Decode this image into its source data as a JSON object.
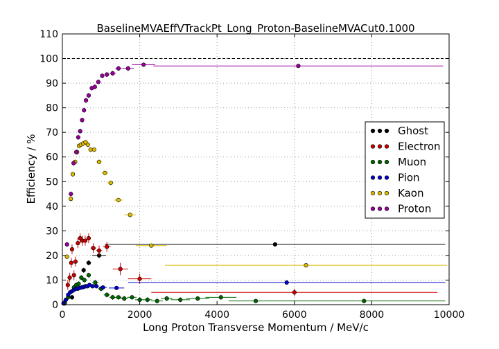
{
  "chart_data": {
    "type": "scatter",
    "title": "BaselineMVAEffVTrackPt_Long_Proton-BaselineMVACut0.1000",
    "xlabel": "Long Proton Transverse Momentum / MeV/c",
    "ylabel": "Efficiency / %",
    "xlim": [
      0,
      10000
    ],
    "ylim": [
      0,
      110
    ],
    "xticks": [
      "0",
      "2000",
      "4000",
      "6000",
      "8000",
      "10000"
    ],
    "yticks": [
      "0",
      "10",
      "20",
      "30",
      "40",
      "50",
      "60",
      "70",
      "80",
      "90",
      "100",
      "110"
    ],
    "grid": true,
    "reference_line": 100,
    "legend_position": "right",
    "series": [
      {
        "name": "Ghost",
        "color": "#000000",
        "points": [
          {
            "x": 250,
            "y": 3,
            "xerr": 50,
            "yerr": 1
          },
          {
            "x": 550,
            "y": 14,
            "xerr": 50,
            "yerr": 1
          },
          {
            "x": 680,
            "y": 17,
            "xerr": 60,
            "yerr": 1
          },
          {
            "x": 950,
            "y": 20,
            "xerr": 180,
            "yerr": 1
          },
          {
            "x": 5500,
            "y": 24.5,
            "xerr": 4400,
            "yerr": 0.8
          }
        ]
      },
      {
        "name": "Electron",
        "color": "#cc0000",
        "points": [
          {
            "x": 60,
            "y": 1,
            "xerr": 40,
            "yerr": 1
          },
          {
            "x": 140,
            "y": 8,
            "xerr": 40,
            "yerr": 2
          },
          {
            "x": 190,
            "y": 11,
            "xerr": 30,
            "yerr": 2
          },
          {
            "x": 230,
            "y": 17,
            "xerr": 30,
            "yerr": 2
          },
          {
            "x": 250,
            "y": 22.5,
            "xerr": 30,
            "yerr": 2
          },
          {
            "x": 300,
            "y": 12,
            "xerr": 30,
            "yerr": 2
          },
          {
            "x": 340,
            "y": 17.5,
            "xerr": 30,
            "yerr": 2
          },
          {
            "x": 400,
            "y": 25,
            "xerr": 40,
            "yerr": 2
          },
          {
            "x": 460,
            "y": 27,
            "xerr": 40,
            "yerr": 2
          },
          {
            "x": 520,
            "y": 26,
            "xerr": 40,
            "yerr": 2
          },
          {
            "x": 590,
            "y": 26,
            "xerr": 40,
            "yerr": 2
          },
          {
            "x": 680,
            "y": 27,
            "xerr": 50,
            "yerr": 2
          },
          {
            "x": 800,
            "y": 23,
            "xerr": 70,
            "yerr": 2
          },
          {
            "x": 950,
            "y": 22,
            "xerr": 80,
            "yerr": 2
          },
          {
            "x": 1150,
            "y": 23.5,
            "xerr": 100,
            "yerr": 2
          },
          {
            "x": 1500,
            "y": 14.5,
            "xerr": 200,
            "yerr": 2.5
          },
          {
            "x": 2000,
            "y": 10.5,
            "xerr": 300,
            "yerr": 2
          },
          {
            "x": 6000,
            "y": 5,
            "xerr": 3700,
            "yerr": 1.5
          }
        ]
      },
      {
        "name": "Muon",
        "color": "#006600",
        "points": [
          {
            "x": 60,
            "y": 0.5,
            "xerr": 40,
            "yerr": 0.5
          },
          {
            "x": 150,
            "y": 3,
            "xerr": 30,
            "yerr": 1
          },
          {
            "x": 300,
            "y": 7,
            "xerr": 30,
            "yerr": 1
          },
          {
            "x": 360,
            "y": 8,
            "xerr": 30,
            "yerr": 1
          },
          {
            "x": 420,
            "y": 8.5,
            "xerr": 30,
            "yerr": 1
          },
          {
            "x": 490,
            "y": 11,
            "xerr": 30,
            "yerr": 1
          },
          {
            "x": 570,
            "y": 10,
            "xerr": 40,
            "yerr": 1
          },
          {
            "x": 680,
            "y": 12,
            "xerr": 50,
            "yerr": 1
          },
          {
            "x": 850,
            "y": 9,
            "xerr": 80,
            "yerr": 1
          },
          {
            "x": 1000,
            "y": 6.5,
            "xerr": 80,
            "yerr": 1
          },
          {
            "x": 1150,
            "y": 4,
            "xerr": 80,
            "yerr": 1
          },
          {
            "x": 1300,
            "y": 3,
            "xerr": 80,
            "yerr": 1
          },
          {
            "x": 1450,
            "y": 3,
            "xerr": 80,
            "yerr": 1
          },
          {
            "x": 1600,
            "y": 2.5,
            "xerr": 100,
            "yerr": 1
          },
          {
            "x": 1800,
            "y": 3,
            "xerr": 120,
            "yerr": 1
          },
          {
            "x": 2000,
            "y": 2,
            "xerr": 120,
            "yerr": 1
          },
          {
            "x": 2200,
            "y": 2,
            "xerr": 120,
            "yerr": 1
          },
          {
            "x": 2450,
            "y": 1.5,
            "xerr": 150,
            "yerr": 1
          },
          {
            "x": 2700,
            "y": 2.5,
            "xerr": 150,
            "yerr": 1
          },
          {
            "x": 3050,
            "y": 2,
            "xerr": 250,
            "yerr": 1
          },
          {
            "x": 3500,
            "y": 2.5,
            "xerr": 300,
            "yerr": 1
          },
          {
            "x": 4100,
            "y": 3,
            "xerr": 400,
            "yerr": 1
          },
          {
            "x": 5000,
            "y": 1.5,
            "xerr": 700,
            "yerr": 0.8
          },
          {
            "x": 7800,
            "y": 1.5,
            "xerr": 2100,
            "yerr": 0.8
          }
        ]
      },
      {
        "name": "Pion",
        "color": "#0000cc",
        "points": [
          {
            "x": 30,
            "y": 0.5,
            "xerr": 30,
            "yerr": 0.3
          },
          {
            "x": 90,
            "y": 2,
            "xerr": 30,
            "yerr": 0.3
          },
          {
            "x": 150,
            "y": 4,
            "xerr": 30,
            "yerr": 0.3
          },
          {
            "x": 200,
            "y": 5,
            "xerr": 30,
            "yerr": 0.3
          },
          {
            "x": 250,
            "y": 5.5,
            "xerr": 30,
            "yerr": 0.3
          },
          {
            "x": 300,
            "y": 6,
            "xerr": 30,
            "yerr": 0.3
          },
          {
            "x": 350,
            "y": 6.5,
            "xerr": 30,
            "yerr": 0.3
          },
          {
            "x": 400,
            "y": 6.5,
            "xerr": 30,
            "yerr": 0.3
          },
          {
            "x": 450,
            "y": 6.8,
            "xerr": 30,
            "yerr": 0.3
          },
          {
            "x": 500,
            "y": 7,
            "xerr": 30,
            "yerr": 0.3
          },
          {
            "x": 550,
            "y": 7.2,
            "xerr": 30,
            "yerr": 0.3
          },
          {
            "x": 600,
            "y": 7.5,
            "xerr": 30,
            "yerr": 0.3
          },
          {
            "x": 650,
            "y": 7.5,
            "xerr": 30,
            "yerr": 0.3
          },
          {
            "x": 700,
            "y": 8,
            "xerr": 40,
            "yerr": 0.3
          },
          {
            "x": 780,
            "y": 7.5,
            "xerr": 50,
            "yerr": 0.3
          },
          {
            "x": 880,
            "y": 7.5,
            "xerr": 60,
            "yerr": 0.3
          },
          {
            "x": 1050,
            "y": 7,
            "xerr": 100,
            "yerr": 0.3
          },
          {
            "x": 1400,
            "y": 6.8,
            "xerr": 200,
            "yerr": 0.3
          },
          {
            "x": 5800,
            "y": 9,
            "xerr": 4100,
            "yerr": 0.5
          }
        ]
      },
      {
        "name": "Kaon",
        "color": "#ddbb00",
        "points": [
          {
            "x": 120,
            "y": 19.5,
            "xerr": 40,
            "yerr": 1
          },
          {
            "x": 220,
            "y": 43,
            "xerr": 30,
            "yerr": 1
          },
          {
            "x": 270,
            "y": 53,
            "xerr": 30,
            "yerr": 1
          },
          {
            "x": 330,
            "y": 58,
            "xerr": 30,
            "yerr": 1
          },
          {
            "x": 380,
            "y": 62,
            "xerr": 30,
            "yerr": 1
          },
          {
            "x": 430,
            "y": 64.5,
            "xerr": 30,
            "yerr": 1
          },
          {
            "x": 480,
            "y": 65,
            "xerr": 30,
            "yerr": 1
          },
          {
            "x": 540,
            "y": 65.5,
            "xerr": 30,
            "yerr": 1
          },
          {
            "x": 600,
            "y": 66,
            "xerr": 30,
            "yerr": 1
          },
          {
            "x": 660,
            "y": 65,
            "xerr": 30,
            "yerr": 1
          },
          {
            "x": 730,
            "y": 63,
            "xerr": 40,
            "yerr": 1
          },
          {
            "x": 820,
            "y": 63,
            "xerr": 50,
            "yerr": 1
          },
          {
            "x": 950,
            "y": 58,
            "xerr": 70,
            "yerr": 1
          },
          {
            "x": 1100,
            "y": 53.5,
            "xerr": 80,
            "yerr": 1
          },
          {
            "x": 1250,
            "y": 49.5,
            "xerr": 80,
            "yerr": 1
          },
          {
            "x": 1450,
            "y": 42.5,
            "xerr": 120,
            "yerr": 1
          },
          {
            "x": 1750,
            "y": 36.5,
            "xerr": 150,
            "yerr": 1
          },
          {
            "x": 2300,
            "y": 24,
            "xerr": 400,
            "yerr": 0.8
          },
          {
            "x": 6300,
            "y": 16,
            "xerr": 3650,
            "yerr": 0.8
          }
        ]
      },
      {
        "name": "Proton",
        "color": "#990099",
        "points": [
          {
            "x": 120,
            "y": 24.5,
            "xerr": 40,
            "yerr": 1
          },
          {
            "x": 220,
            "y": 45,
            "xerr": 30,
            "yerr": 1
          },
          {
            "x": 290,
            "y": 57.5,
            "xerr": 30,
            "yerr": 1
          },
          {
            "x": 360,
            "y": 62,
            "xerr": 30,
            "yerr": 1
          },
          {
            "x": 410,
            "y": 68,
            "xerr": 30,
            "yerr": 1
          },
          {
            "x": 460,
            "y": 70.5,
            "xerr": 30,
            "yerr": 1
          },
          {
            "x": 510,
            "y": 75,
            "xerr": 30,
            "yerr": 1
          },
          {
            "x": 560,
            "y": 79,
            "xerr": 30,
            "yerr": 1
          },
          {
            "x": 610,
            "y": 83,
            "xerr": 30,
            "yerr": 1
          },
          {
            "x": 680,
            "y": 85,
            "xerr": 40,
            "yerr": 1
          },
          {
            "x": 760,
            "y": 88,
            "xerr": 40,
            "yerr": 1
          },
          {
            "x": 840,
            "y": 88.5,
            "xerr": 40,
            "yerr": 1
          },
          {
            "x": 930,
            "y": 90.5,
            "xerr": 50,
            "yerr": 1
          },
          {
            "x": 1030,
            "y": 93,
            "xerr": 50,
            "yerr": 1
          },
          {
            "x": 1150,
            "y": 93.5,
            "xerr": 60,
            "yerr": 1
          },
          {
            "x": 1300,
            "y": 94,
            "xerr": 80,
            "yerr": 1
          },
          {
            "x": 1450,
            "y": 96,
            "xerr": 80,
            "yerr": 1
          },
          {
            "x": 1700,
            "y": 96,
            "xerr": 150,
            "yerr": 1
          },
          {
            "x": 2100,
            "y": 97.5,
            "xerr": 300,
            "yerr": 0.8
          },
          {
            "x": 6100,
            "y": 97,
            "xerr": 3750,
            "yerr": 0.8
          }
        ]
      }
    ]
  }
}
